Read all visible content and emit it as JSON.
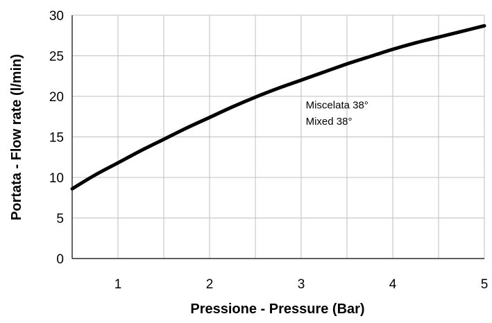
{
  "chart_data": {
    "type": "line",
    "title": "",
    "xlabel": "Pressione - Pressure (Bar)",
    "ylabel": "Portata - Flow rate (l/min)",
    "xlim": [
      0.5,
      5
    ],
    "ylim": [
      0,
      30
    ],
    "x_ticks": [
      "1",
      "2",
      "3",
      "4",
      "5"
    ],
    "y_ticks": [
      "0",
      "5",
      "10",
      "15",
      "20",
      "25",
      "30"
    ],
    "grid": true,
    "series": [
      {
        "x": [
          0.5,
          0.75,
          1.0,
          1.25,
          1.5,
          1.75,
          2.0,
          2.25,
          2.5,
          2.75,
          3.0,
          3.25,
          3.5,
          3.75,
          4.0,
          4.25,
          4.5,
          4.75,
          5.0
        ],
        "values": [
          8.6,
          10.3,
          11.8,
          13.3,
          14.7,
          16.1,
          17.4,
          18.7,
          19.9,
          21.0,
          22.0,
          23.0,
          24.0,
          24.9,
          25.8,
          26.6,
          27.3,
          28.0,
          28.7
        ],
        "color": "#000000"
      }
    ],
    "annotations": [
      {
        "text": "Miscelata 38°",
        "x": 3.05,
        "y": 18.5
      },
      {
        "text": "Mixed 38°",
        "x": 3.05,
        "y": 16.5
      }
    ]
  }
}
